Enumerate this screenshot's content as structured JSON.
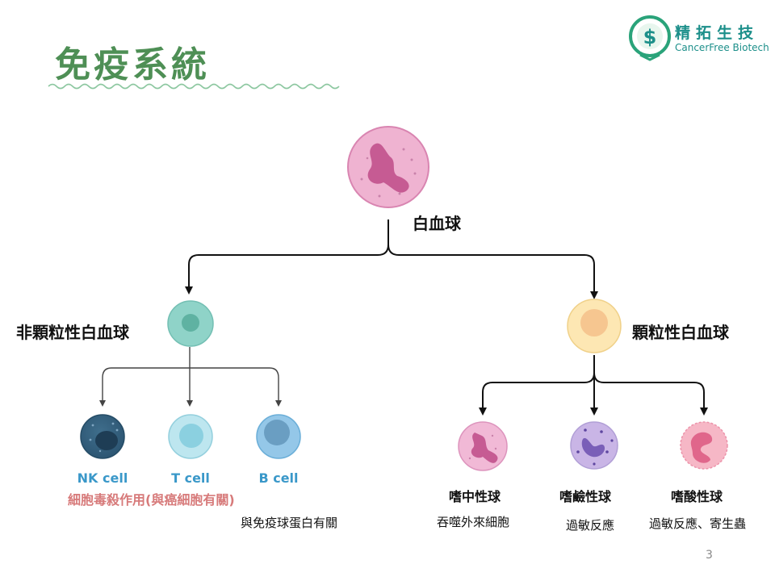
{
  "slide": {
    "title": "免疫系統",
    "page_number": "3"
  },
  "logo": {
    "name_cn": "精拓生技",
    "name_en": "CancerFree Biotech",
    "color": "#1c8f8a"
  },
  "tree": {
    "root": {
      "label": "白血球"
    },
    "left": {
      "label": "非顆粒性白血球",
      "children": [
        {
          "label": "NK cell"
        },
        {
          "label": "T cell"
        },
        {
          "label": "B cell"
        }
      ],
      "note_nk": "細胞毒殺作用(與癌細胞有關)",
      "note_b": "與免疫球蛋白有關"
    },
    "right": {
      "label": "顆粒性白血球",
      "children": [
        {
          "label": "嗜中性球",
          "note": "吞噬外來細胞"
        },
        {
          "label": "嗜鹼性球",
          "note": "過敏反應"
        },
        {
          "label": "嗜酸性球",
          "note": "過敏反應、寄生蟲"
        }
      ]
    }
  },
  "colors": {
    "title": "#4e8f55",
    "cell_label": "#3a98c9",
    "nk_note": "#d77a7a"
  }
}
